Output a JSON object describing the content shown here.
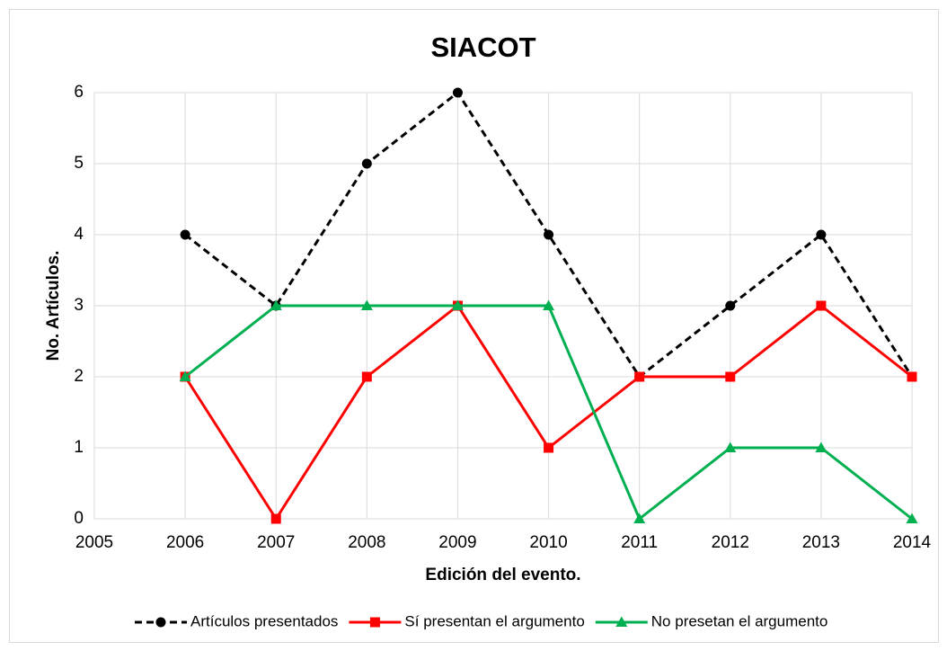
{
  "chart_data": {
    "type": "line",
    "title": "SIACOT",
    "x_label": "Edición del evento.",
    "y_label": "No. Artículos.",
    "x": [
      2006,
      2007,
      2008,
      2009,
      2010,
      2011,
      2012,
      2013,
      2014
    ],
    "series": [
      {
        "name": "Artículos presentados",
        "color": "#000000",
        "line_style": "dashed",
        "marker": "circle",
        "values": [
          4,
          3,
          5,
          6,
          4,
          2,
          3,
          4,
          2
        ]
      },
      {
        "name": "Sí presentan el argumento",
        "color": "#ff0000",
        "line_style": "solid",
        "marker": "square",
        "values": [
          2,
          0,
          2,
          3,
          1,
          2,
          2,
          3,
          2
        ]
      },
      {
        "name": "No presetan el argumento",
        "color": "#00b050",
        "line_style": "solid",
        "marker": "triangle",
        "values": [
          2,
          3,
          3,
          3,
          3,
          0,
          1,
          1,
          0
        ]
      }
    ],
    "xlim": [
      2005,
      2014
    ],
    "xticks": [
      2005,
      2006,
      2007,
      2008,
      2009,
      2010,
      2011,
      2012,
      2013,
      2014
    ],
    "ylim": [
      0,
      6
    ],
    "yticks": [
      0,
      1,
      2,
      3,
      4,
      5,
      6
    ],
    "grid": true,
    "legend": "bottom"
  }
}
